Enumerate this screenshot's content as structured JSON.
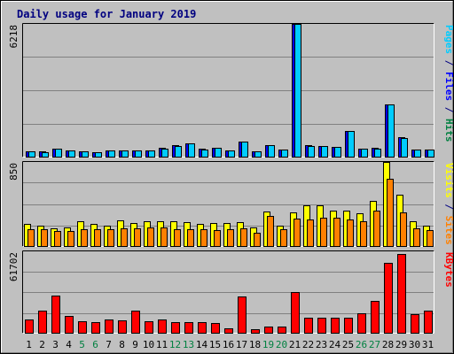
{
  "chart_data": {
    "type": "bar",
    "title": "Daily usage for January 2019",
    "categories": [
      "1",
      "2",
      "3",
      "4",
      "5",
      "6",
      "7",
      "8",
      "9",
      "10",
      "11",
      "12",
      "13",
      "14",
      "15",
      "16",
      "17",
      "18",
      "19",
      "20",
      "21",
      "22",
      "23",
      "24",
      "25",
      "26",
      "27",
      "28",
      "29",
      "30",
      "31"
    ],
    "weekend_days": [
      "5",
      "6",
      "12",
      "13",
      "19",
      "20",
      "26",
      "27"
    ],
    "panels": [
      {
        "name": "pages-files",
        "max_label": "6218",
        "ylim": [
          0,
          6218
        ],
        "side_label": [
          {
            "text": "Pages",
            "color": "#00ccff"
          },
          {
            "text": " / ",
            "color": "#000080"
          },
          {
            "text": "Files",
            "color": "#0000ff"
          },
          {
            "text": " / ",
            "color": "#000080"
          },
          {
            "text": "Hits",
            "color": "#008040"
          }
        ],
        "series": [
          {
            "name": "Hits",
            "color": "#008040",
            "values": [
              0,
              0,
              0,
              0,
              0,
              0,
              0,
              0,
              0,
              0,
              0,
              0,
              0,
              0,
              0,
              0,
              0,
              0,
              0,
              0,
              0,
              0,
              0,
              0,
              0,
              0,
              0,
              0,
              0,
              0,
              0
            ]
          },
          {
            "name": "Files",
            "color": "#0000ff",
            "values": [
              260,
              230,
              390,
              300,
              250,
              200,
              300,
              290,
              300,
              310,
              400,
              520,
              620,
              360,
              420,
              280,
              700,
              250,
              550,
              330,
              6210,
              520,
              500,
              470,
              1220,
              370,
              400,
              2450,
              900,
              330,
              340
            ]
          },
          {
            "name": "Pages",
            "color": "#00ccff",
            "values": [
              250,
              220,
              380,
              290,
              240,
              190,
              290,
              280,
              290,
              300,
              390,
              510,
              610,
              350,
              410,
              270,
              690,
              240,
              540,
              320,
              6200,
              510,
              490,
              460,
              1210,
              360,
              390,
              2440,
              890,
              320,
              330
            ]
          }
        ]
      },
      {
        "name": "visits-sites",
        "max_label": "850",
        "ylim": [
          0,
          850
        ],
        "side_label": [
          {
            "text": "Visits",
            "color": "#ffff00"
          },
          {
            "text": " / ",
            "color": "#000080"
          },
          {
            "text": "Sites",
            "color": "#ff8000"
          }
        ],
        "series": [
          {
            "name": "Visits",
            "color": "#ffff00",
            "values": [
              220,
              210,
              180,
              190,
              250,
              220,
              210,
              260,
              230,
              250,
              250,
              250,
              240,
              220,
              230,
              230,
              240,
              190,
              350,
              210,
              340,
              410,
              410,
              360,
              360,
              330,
              460,
              850,
              520,
              250,
              210
            ]
          },
          {
            "name": "Sites",
            "color": "#ff8000",
            "values": [
              170,
              170,
              150,
              150,
              170,
              170,
              170,
              180,
              180,
              190,
              190,
              170,
              170,
              170,
              160,
              170,
              180,
              130,
              300,
              170,
              280,
              270,
              290,
              290,
              270,
              250,
              360,
              680,
              340,
              180,
              160
            ]
          }
        ]
      },
      {
        "name": "kbytes",
        "max_label": "61702",
        "ylim": [
          0,
          61702
        ],
        "side_label": [
          {
            "text": "KBytes",
            "color": "#ff0000"
          }
        ],
        "series": [
          {
            "name": "KBytes",
            "color": "#ff0000",
            "values": [
              10000,
              17000,
              28000,
              13000,
              9000,
              8000,
              10000,
              9500,
              16500,
              8500,
              10000,
              8000,
              8000,
              8000,
              7500,
              3500,
              27500,
              3000,
              5000,
              5000,
              31000,
              11500,
              11500,
              11500,
              11500,
              14500,
              24000,
              53000,
              59500,
              14000,
              16500
            ]
          }
        ]
      }
    ]
  }
}
